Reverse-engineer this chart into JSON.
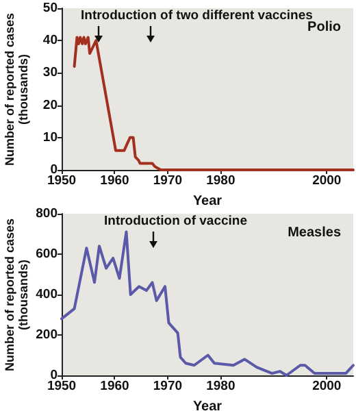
{
  "chart_data": [
    {
      "type": "line",
      "title": "Polio",
      "xlabel": "Year",
      "ylabel": "Number of reported cases (thousands)",
      "annotations": [
        "Introduction of two different vaccines"
      ],
      "xlim": [
        1950,
        2005
      ],
      "xticks": [
        1950,
        1960,
        1970,
        1980,
        2000
      ],
      "ylim": [
        0,
        50
      ],
      "yticks": [
        0,
        10,
        20,
        30,
        40,
        50
      ],
      "marker": "none",
      "line_style": "solid",
      "series": [
        {
          "color": "#a3301e",
          "x": [
            1952.4,
            1952.9,
            1953.2,
            1953.5,
            1953.9,
            1954.2,
            1954.5,
            1955,
            1955.3,
            1956.5,
            1960.2,
            1960.8,
            1961.8,
            1962.9,
            1963.5,
            1963.9,
            1964.5,
            1964.8,
            1967.1,
            1967.6,
            1968.7,
            2005
          ],
          "values": [
            32,
            41,
            39,
            41,
            39,
            41,
            39,
            41,
            36,
            40,
            6,
            6,
            6,
            10,
            10,
            4,
            3,
            2,
            2,
            1,
            0,
            0
          ]
        }
      ]
    },
    {
      "type": "line",
      "title": "Measles",
      "xlabel": "Year",
      "ylabel": "Number of reported cases (thousands)",
      "annotations": [
        "Introduction of vaccine"
      ],
      "xlim": [
        1950,
        2005
      ],
      "xticks": [
        1950,
        1960,
        1970,
        1980,
        2000
      ],
      "ylim": [
        0,
        800
      ],
      "yticks": [
        0,
        200,
        400,
        600,
        800
      ],
      "marker": "none",
      "line_style": "solid",
      "series": [
        {
          "color": "#5a5aa8",
          "x": [
            1950,
            1952.4,
            1954.7,
            1956.2,
            1957.1,
            1958.4,
            1959.7,
            1960.9,
            1962.2,
            1963,
            1964.6,
            1966,
            1967.1,
            1967.9,
            1969.5,
            1970.2,
            1971.9,
            1972.4,
            1973.4,
            1975,
            1977.6,
            1978.8,
            1982.4,
            1984.5,
            1986.8,
            1989.7,
            1991.2,
            1992.4,
            1995,
            1995.9,
            1997.7,
            2000.3,
            2003.6,
            2005
          ],
          "values": [
            280,
            330,
            630,
            460,
            640,
            530,
            580,
            480,
            710,
            400,
            440,
            420,
            460,
            370,
            440,
            260,
            210,
            90,
            60,
            50,
            100,
            60,
            50,
            80,
            40,
            10,
            20,
            0,
            50,
            50,
            10,
            10,
            10,
            50
          ]
        }
      ]
    }
  ]
}
